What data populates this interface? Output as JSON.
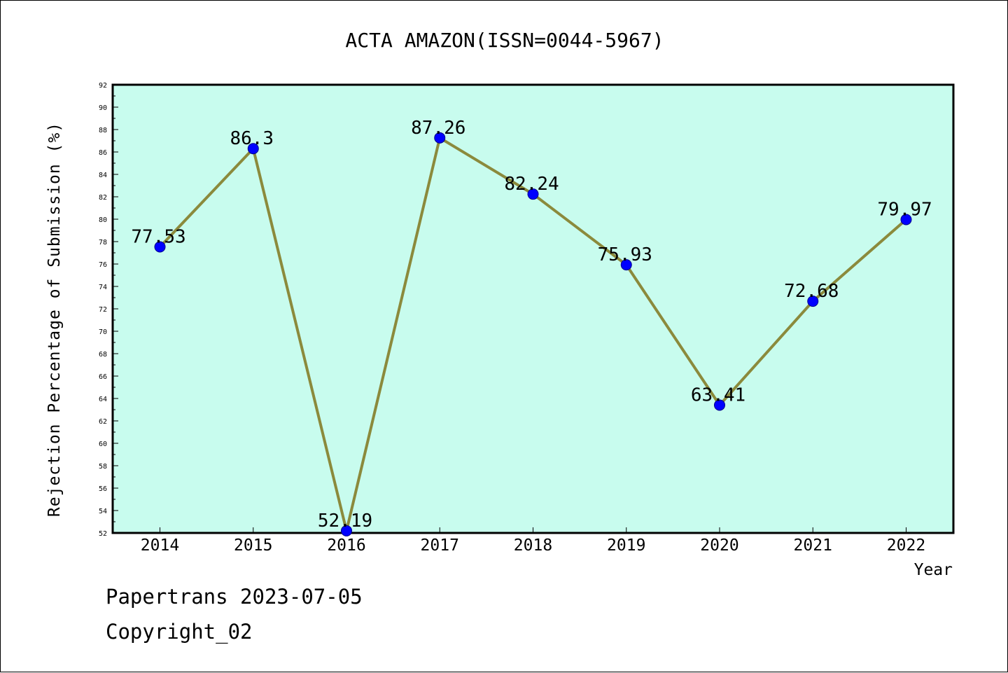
{
  "chart_data": {
    "type": "line",
    "title": "ACTA AMAZON(ISSN=0044-5967)",
    "xlabel": "Year",
    "ylabel": "Rejection Percentage of Submission (%)",
    "categories": [
      "2014",
      "2015",
      "2016",
      "2017",
      "2018",
      "2019",
      "2020",
      "2021",
      "2022"
    ],
    "series": [
      {
        "values": [
          77.53,
          86.3,
          52.19,
          87.26,
          82.24,
          75.93,
          63.41,
          72.68,
          79.97
        ],
        "labels": [
          "77.53",
          "86.3",
          "52.19",
          "87.26",
          "82.24",
          "75.93",
          "63.41",
          "72.68",
          "79.97"
        ]
      }
    ],
    "ylim": [
      52,
      92
    ],
    "ytick_step": 2,
    "grid": false,
    "legend": "none",
    "colors": {
      "plot_background": "#c8fcee",
      "line": "#8b8a3c",
      "marker": "#0000ff"
    }
  },
  "footer": {
    "line1": "Papertrans 2023-07-05",
    "line2": "Copyright_02"
  }
}
